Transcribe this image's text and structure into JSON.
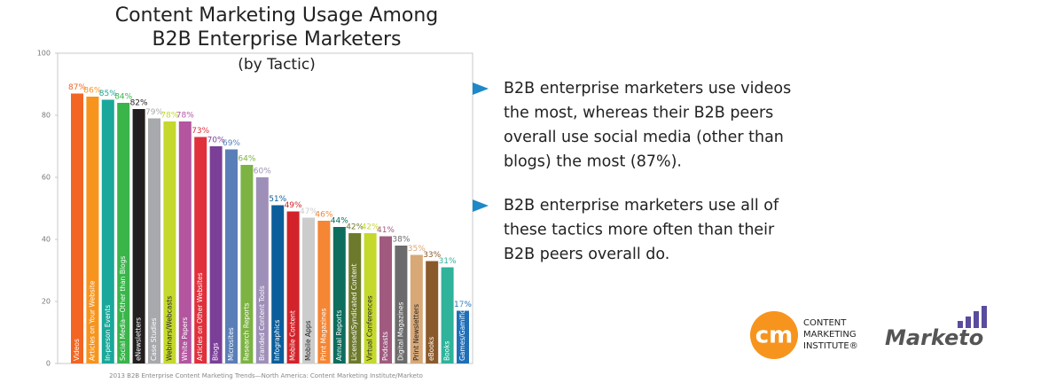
{
  "chart_data": {
    "type": "bar",
    "title_lines": [
      "Content Marketing Usage Among",
      "B2B Enterprise Marketers"
    ],
    "subtitle": "(by Tactic)",
    "categories": [
      "Videos",
      "Articles on Your Website",
      "In-person Events",
      "Social Media—Other than Blogs",
      "eNewsletters",
      "Case Studies",
      "Webinars/Webcasts",
      "White Papers",
      "Articles on Other Websites",
      "Blogs",
      "Microsites",
      "Research Reports",
      "Branded Content Tools",
      "Infographics",
      "Mobile Content",
      "Mobile Apps",
      "Print Magazines",
      "Annual Reports",
      "Licensed/Syndicated Content",
      "Virtual Conferences",
      "Podcasts",
      "Digital Magazines",
      "Print Newsletters",
      "eBooks",
      "Books",
      "Games/Gamification"
    ],
    "values": [
      87,
      86,
      85,
      84,
      82,
      79,
      78,
      78,
      73,
      70,
      69,
      64,
      60,
      51,
      49,
      47,
      46,
      44,
      42,
      42,
      41,
      38,
      35,
      33,
      31,
      17
    ],
    "value_labels": [
      "87%",
      "86%",
      "85%",
      "84%",
      "82%",
      "79%",
      "78%",
      "78%",
      "73%",
      "70%",
      "69%",
      "64%",
      "60%",
      "51%",
      "49%",
      "47%",
      "46%",
      "44%",
      "42%",
      "42%",
      "41%",
      "38%",
      "35%",
      "33%",
      "31%",
      "17%"
    ],
    "colors": [
      "#f26522",
      "#f7941d",
      "#1aa89a",
      "#39b54a",
      "#231f20",
      "#a7a9ac",
      "#c4d82e",
      "#b455a0",
      "#e0303c",
      "#7b3f98",
      "#5a7fb8",
      "#7cb342",
      "#9e8fb8",
      "#0b5e9b",
      "#d2232a",
      "#cccccc",
      "#f58634",
      "#0d6e5e",
      "#6d7a2c",
      "#c5d92d",
      "#a05a7f",
      "#6b6b6b",
      "#d9a877",
      "#8b5a2b",
      "#2fb39b",
      "#1e6fb8"
    ],
    "ylim": [
      0,
      100
    ],
    "yticks": [
      0,
      20,
      40,
      60,
      80,
      100
    ],
    "source": "2013 B2B Enterprise Content Marketing Trends—North America: Content Marketing Institute/Marketo"
  },
  "bullets": [
    [
      "B2B enterprise marketers use videos",
      "the most, whereas their B2B peers",
      "overall use social media (other than",
      "blogs) the most (87%)."
    ],
    [
      "B2B enterprise marketers use all of",
      "these tactics more often than their",
      "B2B peers overall do."
    ]
  ],
  "logos": {
    "cmi_mark": "cm",
    "cmi_text": [
      "CONTENT",
      "MARKETING",
      "INSTITUTE®"
    ],
    "marketo": "Marketo"
  }
}
